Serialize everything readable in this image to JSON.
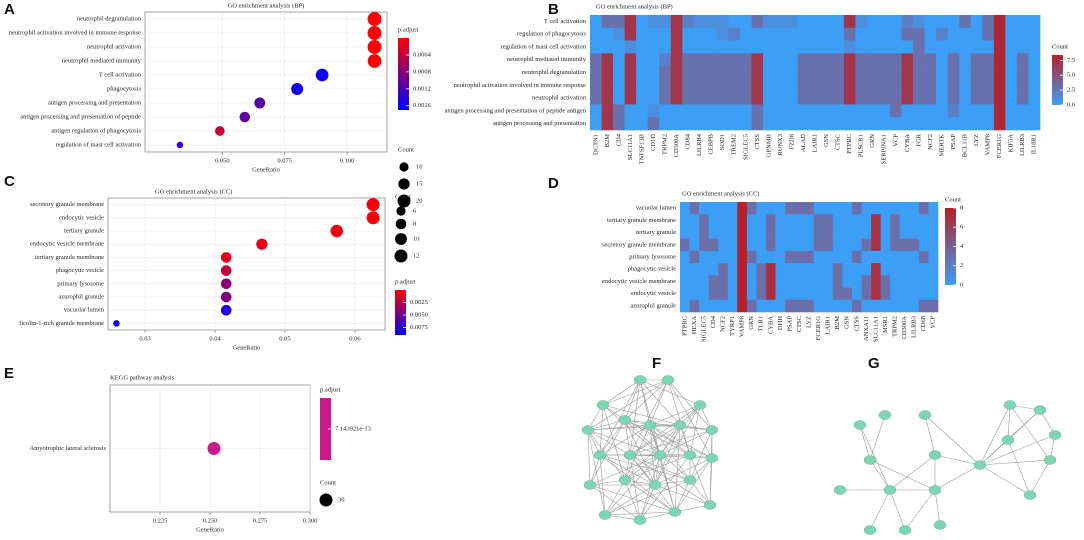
{
  "chart_data": [
    {
      "panel": "A",
      "type": "dot",
      "title": "GO enrichment analysis (BP)",
      "xlabel": "GeneRatio",
      "categories": [
        "neutrophil degranulation",
        "neutrophil activation involved in immune response",
        "neutrophil activation",
        "neutrophil mediated immunity",
        "T cell activation",
        "phagocytosis",
        "antigen processing and presentation",
        "antigen processing and presentation of peptide",
        "antigen regulation of phagocytosis",
        "regulation of mast cell activation"
      ],
      "x": [
        0.111,
        0.111,
        0.111,
        0.111,
        0.09,
        0.08,
        0.065,
        0.059,
        0.049,
        0.033
      ],
      "count": [
        23,
        23,
        23,
        22,
        19,
        17,
        14,
        13,
        11,
        5
      ],
      "p_adjust": [
        2e-05,
        2e-05,
        2e-05,
        2e-05,
        0.0016,
        0.0016,
        0.0011,
        0.0011,
        0.0004,
        0.0013
      ],
      "xlim": [
        0.019,
        0.116
      ],
      "xticks": [
        {
          "value": 0.05,
          "label": "0.050"
        },
        0.075,
        {
          "value": 0.1,
          "label": "0.100"
        }
      ],
      "grid": true,
      "color_legend_title": "p.adjust",
      "clim": [
        0,
        0.0017
      ],
      "colors": [
        "#ff0000",
        "#0000ff"
      ],
      "color_ticks": [
        0.0004,
        0.0008,
        0.0012,
        0.0016
      ],
      "size_legend_title": "Count",
      "size_ticks": [
        10,
        15,
        20
      ]
    },
    {
      "panel": "B",
      "type": "heatmap",
      "title": "GO enrichment analysis (BP)",
      "rows": [
        "T cell activation",
        "regulation of phagocytosis",
        "regulation of mast cell activation",
        "neutrophil mediated immunity",
        "neutrophil degranulation",
        "neutrophil activation involved in immune response",
        "neutrophil activation",
        "antigen processing and presentation of peptide antigen",
        "antigen processing and presentation"
      ],
      "columns": [
        "DCTN1",
        "B2M",
        "CD4",
        "SLC11A1",
        "TNFSF13B",
        "CD1D",
        "TRPM2",
        "CD300A",
        "CD84",
        "LILRB4",
        "CEBPB",
        "SOD1",
        "TREM2",
        "SIGLEC5",
        "CTSS",
        "GPNMB",
        "RUNX3",
        "FZD8",
        "ALAD",
        "LAIR1",
        "GSN",
        "CTSC",
        "PTPRC",
        "PLSCR1",
        "GRN",
        "SERPINA1",
        "VCP",
        "CYBA",
        "FGR",
        "NCF2",
        "MERTK",
        "PSAP",
        "BCL11B",
        "LYZ",
        "VAMP8",
        "FCER1G",
        "KIF5A",
        "LILRB3",
        "IL18R1"
      ],
      "values": [
        [
          0,
          3,
          3,
          7,
          0,
          1,
          1,
          7,
          2,
          1,
          1,
          1,
          0,
          0,
          3,
          1,
          1,
          1,
          0,
          0,
          0,
          0,
          7,
          1,
          0,
          0,
          0,
          2,
          1,
          0,
          0,
          0,
          3,
          0,
          3,
          8,
          0,
          0,
          0
        ],
        [
          0,
          0,
          1,
          7,
          0,
          0,
          0,
          7,
          0,
          0,
          0,
          1,
          2,
          0,
          0,
          0,
          0,
          0,
          0,
          0,
          0,
          0,
          3,
          0,
          0,
          0,
          0,
          3,
          3,
          0,
          2,
          0,
          0,
          0,
          3,
          8,
          0,
          0,
          0
        ],
        [
          0,
          0,
          0,
          1,
          0,
          0,
          0,
          7,
          0,
          0,
          0,
          0,
          0,
          0,
          0,
          0,
          0,
          0,
          0,
          0,
          0,
          0,
          1,
          0,
          0,
          0,
          0,
          0,
          3,
          0,
          0,
          0,
          0,
          0,
          0,
          8,
          0,
          0,
          0
        ],
        [
          3,
          7,
          0,
          7,
          0,
          0,
          2,
          7,
          3,
          3,
          3,
          3,
          3,
          3,
          7,
          0,
          0,
          0,
          3,
          3,
          3,
          3,
          7,
          3,
          3,
          3,
          3,
          7,
          3,
          3,
          0,
          3,
          0,
          3,
          3,
          8,
          0,
          3,
          0
        ],
        [
          3,
          7,
          0,
          7,
          0,
          0,
          3,
          7,
          3,
          3,
          3,
          3,
          3,
          3,
          7,
          0,
          0,
          0,
          3,
          3,
          3,
          3,
          7,
          3,
          3,
          3,
          3,
          7,
          3,
          3,
          0,
          3,
          0,
          3,
          3,
          8,
          0,
          3,
          0
        ],
        [
          3,
          7,
          0,
          7,
          0,
          0,
          3,
          7,
          3,
          3,
          3,
          3,
          3,
          3,
          7,
          0,
          0,
          0,
          3,
          3,
          3,
          3,
          7,
          3,
          3,
          3,
          3,
          7,
          3,
          3,
          0,
          3,
          0,
          3,
          3,
          8,
          0,
          3,
          0
        ],
        [
          3,
          7,
          0,
          7,
          0,
          0,
          3,
          7,
          3,
          3,
          3,
          3,
          3,
          3,
          7,
          0,
          0,
          0,
          3,
          3,
          3,
          3,
          7,
          3,
          3,
          3,
          3,
          7,
          3,
          3,
          0,
          3,
          0,
          3,
          3,
          8,
          0,
          3,
          0
        ],
        [
          0,
          7,
          3,
          0,
          0,
          1,
          0,
          0,
          0,
          0,
          0,
          0,
          0,
          0,
          3,
          0,
          0,
          0,
          0,
          0,
          0,
          0,
          0,
          0,
          0,
          0,
          3,
          0,
          0,
          0,
          0,
          2,
          0,
          0,
          0,
          8,
          0,
          0,
          0
        ],
        [
          0,
          7,
          3,
          0,
          0,
          3,
          0,
          0,
          0,
          0,
          0,
          0,
          0,
          0,
          3,
          0,
          0,
          0,
          0,
          0,
          0,
          0,
          0,
          0,
          0,
          0,
          0,
          0,
          0,
          0,
          0,
          0,
          0,
          0,
          0,
          8,
          0,
          0,
          0
        ]
      ],
      "legend_title": "Count",
      "clim": [
        0,
        8.4
      ],
      "colors": [
        "#3d9ef6",
        "#b5202a"
      ],
      "color_ticks": [
        {
          "value": 0,
          "label": "0.0"
        },
        2.5,
        {
          "value": 5,
          "label": "5.0"
        },
        7.5
      ]
    },
    {
      "panel": "C",
      "type": "dot",
      "title": "GO enrichment analysis (CC)",
      "xlabel": "GeneRatio",
      "categories": [
        "secretory granule membrane",
        "endocytic vesicle",
        "tertiary granule",
        "endocytic vesicle membrane",
        "tertiary granule membrane",
        "phagocytic vesicle",
        "primary lysosome",
        "azurophil granule",
        "vacuolar lumen",
        "ficolin-1-rich granule membrane"
      ],
      "x": [
        0.0626,
        0.0626,
        0.0574,
        0.0467,
        0.0416,
        0.0416,
        0.0416,
        0.0416,
        0.0416,
        0.0259
      ],
      "count": [
        12,
        12,
        11,
        9,
        8,
        8,
        8,
        8,
        8,
        3
      ],
      "p_adjust": [
        0.0004,
        0.0004,
        0.0006,
        0.0008,
        0.001,
        0.002,
        0.004,
        0.0045,
        0.0078,
        0.0085
      ],
      "xlim": [
        0.0247,
        0.0643
      ],
      "xticks": [
        0.03,
        0.04,
        0.05,
        0.06
      ],
      "grid": true,
      "color_legend_title": "p.adjust",
      "clim": [
        0,
        0.009
      ],
      "colors": [
        "#ff0000",
        "#0000ff"
      ],
      "color_ticks": [
        0.0025,
        {
          "value": 0.005,
          "label": "0.0050"
        },
        0.0075
      ],
      "size_legend_title": "Count",
      "size_ticks": [
        6,
        8,
        10,
        12
      ]
    },
    {
      "panel": "D",
      "type": "heatmap",
      "title": "GO enrichment analysis (CC)",
      "rows": [
        "vacuolar lumen",
        "tertiary granule membrane",
        "tertiary granule",
        "secretory granule membrane",
        "primary lysosome",
        "phagocytic vesicle",
        "endocytic vesicle membrane",
        "endocytic vesicle",
        "azurophil granule"
      ],
      "columns": [
        "PTPRC",
        "HEXA",
        "SIGLEC5",
        "CD4",
        "NCF2",
        "TYRP1",
        "VAMP8",
        "GRN",
        "TLR1",
        "CYBA",
        "DHH",
        "PSAP",
        "CTSC",
        "LYZ",
        "FCER1G",
        "LAIR1",
        "B2M",
        "GSN",
        "CTSS",
        "ANXA11",
        "SLC11A1",
        "MSR1",
        "TRPM2",
        "CD300A",
        "LILRB3",
        "CD68",
        "VCP"
      ],
      "values": [
        [
          0,
          3,
          0,
          0,
          0,
          0,
          8,
          3,
          0,
          0,
          0,
          3,
          3,
          3,
          0,
          0,
          0,
          0,
          3,
          0,
          0,
          0,
          0,
          0,
          0,
          3,
          0
        ],
        [
          0,
          0,
          3,
          0,
          0,
          0,
          8,
          0,
          0,
          3,
          0,
          0,
          0,
          0,
          3,
          3,
          0,
          0,
          0,
          0,
          7,
          0,
          3,
          0,
          0,
          0,
          0
        ],
        [
          0,
          0,
          3,
          0,
          0,
          0,
          8,
          0,
          0,
          3,
          0,
          0,
          0,
          0,
          3,
          3,
          0,
          0,
          0,
          0,
          7,
          0,
          3,
          0,
          0,
          0,
          0
        ],
        [
          3,
          0,
          3,
          3,
          0,
          0,
          8,
          0,
          0,
          3,
          0,
          0,
          0,
          0,
          3,
          3,
          0,
          0,
          0,
          3,
          7,
          0,
          3,
          3,
          3,
          0,
          0
        ],
        [
          0,
          3,
          0,
          0,
          0,
          0,
          8,
          3,
          0,
          0,
          0,
          3,
          3,
          3,
          0,
          0,
          0,
          0,
          3,
          0,
          0,
          0,
          0,
          0,
          0,
          3,
          0
        ],
        [
          0,
          0,
          0,
          0,
          3,
          0,
          8,
          0,
          3,
          7,
          0,
          0,
          0,
          0,
          0,
          0,
          3,
          0,
          0,
          0,
          7,
          0,
          0,
          0,
          0,
          0,
          0
        ],
        [
          0,
          0,
          0,
          3,
          3,
          0,
          8,
          0,
          3,
          7,
          0,
          0,
          0,
          0,
          0,
          0,
          3,
          0,
          0,
          3,
          7,
          3,
          0,
          0,
          0,
          0,
          0
        ],
        [
          0,
          0,
          0,
          3,
          3,
          0,
          8,
          0,
          3,
          7,
          0,
          0,
          0,
          0,
          0,
          0,
          3,
          3,
          0,
          3,
          7,
          3,
          0,
          0,
          0,
          0,
          0
        ],
        [
          0,
          3,
          0,
          0,
          0,
          0,
          8,
          3,
          0,
          0,
          0,
          3,
          3,
          3,
          0,
          0,
          0,
          0,
          3,
          0,
          0,
          0,
          0,
          0,
          0,
          3,
          3
        ]
      ],
      "legend_title": "Count",
      "clim": [
        0,
        8
      ],
      "colors": [
        "#3d9ef6",
        "#b5202a"
      ],
      "color_ticks": [
        0,
        2,
        4,
        6,
        8
      ]
    },
    {
      "panel": "E",
      "type": "dot",
      "title": "KEGG pathway analysis",
      "xlabel": "GeneRatio",
      "categories": [
        "Amyotrophic lateral sclerosis"
      ],
      "x": [
        0.252
      ],
      "count": [
        30
      ],
      "p_adjust": [
        7.143921e-13
      ],
      "xlim": [
        0.2,
        0.3
      ],
      "xticks": [
        0.225,
        {
          "value": 0.25,
          "label": "0.250"
        },
        0.275,
        {
          "value": 0.3,
          "label": "0.300"
        }
      ],
      "grid": true,
      "color_legend_title": "p.adjust",
      "colors": [
        "#cc1a8c"
      ],
      "color_ticks": [
        {
          "value": 7.143921e-13,
          "label": "7.143921e-13"
        }
      ],
      "size_legend_title": "Count",
      "size_ticks": [
        30
      ]
    },
    {
      "panel": "F",
      "type": "network"
    },
    {
      "panel": "G",
      "type": "network"
    }
  ]
}
